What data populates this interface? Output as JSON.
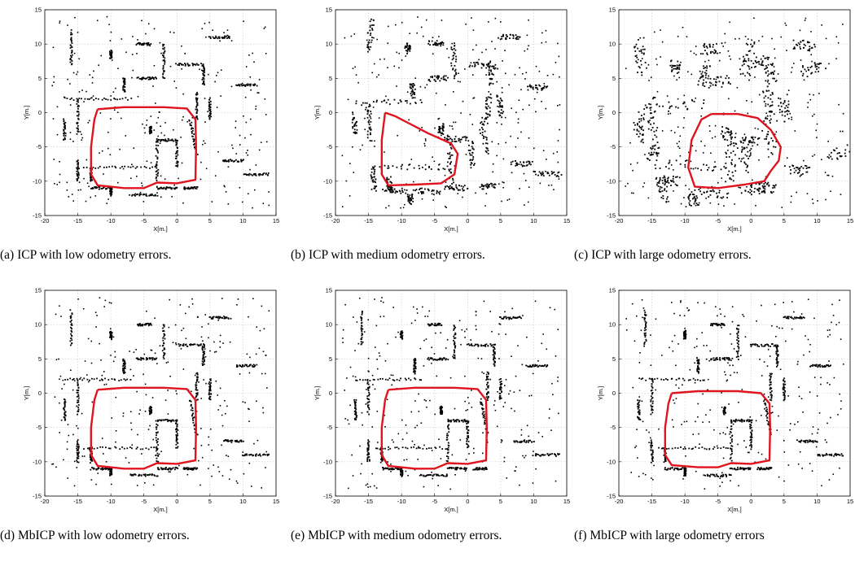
{
  "figure": {
    "panels": [
      {
        "caption": "(a) ICP with low odometry errors."
      },
      {
        "caption": "(b) ICP with medium odometry errors."
      },
      {
        "caption": "(c) ICP with large odometry errors."
      },
      {
        "caption": "(d) MbICP with low odometry errors."
      },
      {
        "caption": "(e) MbICP with medium odometry errors."
      },
      {
        "caption": "(f) MbICP with large odometry errors"
      }
    ]
  },
  "chart_data": [
    {
      "type": "scatter",
      "title": "",
      "xlabel": "X[m.]",
      "ylabel": "Y[m.]",
      "xlim": [
        -20,
        15
      ],
      "ylim": [
        -15,
        15
      ],
      "xticks": [
        "-20",
        "-15",
        "-10",
        "-5",
        "0",
        "5",
        "10",
        "15"
      ],
      "yticks": [
        "15",
        "10",
        "5",
        "0",
        "-5",
        "-10",
        "-15"
      ],
      "grid": true,
      "trajectory_color": "#e0141e",
      "points_color": "#000000",
      "trajectory": [
        [
          -12,
          0.5
        ],
        [
          -8,
          0.8
        ],
        [
          -2,
          0.8
        ],
        [
          1.5,
          0.6
        ],
        [
          2.8,
          -1
        ],
        [
          2.9,
          -5
        ],
        [
          2.8,
          -9.8
        ],
        [
          0,
          -10.3
        ],
        [
          -3,
          -10.2
        ],
        [
          -5,
          -11
        ],
        [
          -8,
          -11
        ],
        [
          -12,
          -10.6
        ],
        [
          -13,
          -9
        ],
        [
          -13,
          -5
        ],
        [
          -12.5,
          -1
        ],
        [
          -12,
          0.5
        ]
      ]
    },
    {
      "type": "scatter",
      "title": "",
      "xlabel": "X[m.]",
      "ylabel": "Y[m.]",
      "xlim": [
        -20,
        15
      ],
      "ylim": [
        -15,
        15
      ],
      "xticks": [
        "-20",
        "-15",
        "-10",
        "-5",
        "0",
        "5",
        "10",
        "15"
      ],
      "yticks": [
        "15",
        "10",
        "5",
        "0",
        "-5",
        "-10",
        "-15"
      ],
      "grid": true,
      "trajectory_color": "#e0141e",
      "points_color": "#000000",
      "trajectory": [
        [
          -12.5,
          0
        ],
        [
          -11,
          -0.5
        ],
        [
          -6,
          -3
        ],
        [
          -2.5,
          -4.5
        ],
        [
          -1.5,
          -6
        ],
        [
          -2,
          -9
        ],
        [
          -4,
          -10.3
        ],
        [
          -8,
          -10.5
        ],
        [
          -12,
          -10.6
        ],
        [
          -13,
          -9
        ],
        [
          -13,
          -4
        ],
        [
          -12.5,
          0
        ]
      ]
    },
    {
      "type": "scatter",
      "title": "",
      "xlabel": "X[m.]",
      "ylabel": "Y[m.]",
      "xlim": [
        -20,
        15
      ],
      "ylim": [
        -15,
        15
      ],
      "xticks": [
        "-20",
        "-15",
        "-10",
        "-5",
        "0",
        "5",
        "10",
        "15"
      ],
      "yticks": [
        "15",
        "10",
        "5",
        "0",
        "-5",
        "-10",
        "-15"
      ],
      "grid": true,
      "trajectory_color": "#e0141e",
      "points_color": "#000000",
      "trajectory": [
        [
          -6,
          -0.2
        ],
        [
          -2,
          -0.2
        ],
        [
          1,
          -0.8
        ],
        [
          3,
          -2.5
        ],
        [
          4.5,
          -5
        ],
        [
          4.2,
          -7
        ],
        [
          3,
          -8.5
        ],
        [
          2,
          -10
        ],
        [
          -1,
          -10.5
        ],
        [
          -5,
          -11
        ],
        [
          -8.5,
          -10.8
        ],
        [
          -9.5,
          -8
        ],
        [
          -9,
          -4
        ],
        [
          -7.5,
          -1
        ],
        [
          -6,
          -0.2
        ]
      ]
    },
    {
      "type": "scatter",
      "title": "",
      "xlabel": "X[m.]",
      "ylabel": "Y[m.]",
      "xlim": [
        -20,
        15
      ],
      "ylim": [
        -15,
        15
      ],
      "xticks": [
        "-20",
        "-15",
        "-10",
        "-5",
        "0",
        "5",
        "10",
        "15"
      ],
      "yticks": [
        "15",
        "10",
        "5",
        "0",
        "-5",
        "-10",
        "-15"
      ],
      "grid": true,
      "trajectory_color": "#e0141e",
      "points_color": "#000000",
      "trajectory": [
        [
          -12,
          0.5
        ],
        [
          -8,
          0.8
        ],
        [
          -2,
          0.8
        ],
        [
          1.5,
          0.6
        ],
        [
          2.8,
          -1
        ],
        [
          2.9,
          -5
        ],
        [
          2.8,
          -9.8
        ],
        [
          0,
          -10.3
        ],
        [
          -3,
          -10.2
        ],
        [
          -5,
          -11
        ],
        [
          -8,
          -11
        ],
        [
          -12,
          -10.6
        ],
        [
          -13,
          -9
        ],
        [
          -13,
          -5
        ],
        [
          -12.5,
          -1
        ],
        [
          -12,
          0.5
        ]
      ]
    },
    {
      "type": "scatter",
      "title": "",
      "xlabel": "X[m.]",
      "ylabel": "Y[m.]",
      "xlim": [
        -20,
        15
      ],
      "ylim": [
        -15,
        15
      ],
      "xticks": [
        "-20",
        "-15",
        "-10",
        "-5",
        "0",
        "5",
        "10",
        "15"
      ],
      "yticks": [
        "15",
        "10",
        "5",
        "0",
        "-5",
        "-10",
        "-15"
      ],
      "grid": true,
      "trajectory_color": "#e0141e",
      "points_color": "#000000",
      "trajectory": [
        [
          -12,
          0.5
        ],
        [
          -8,
          0.8
        ],
        [
          -2,
          0.8
        ],
        [
          1.5,
          0.6
        ],
        [
          2.8,
          -1
        ],
        [
          2.9,
          -5
        ],
        [
          2.8,
          -9.8
        ],
        [
          0,
          -10.3
        ],
        [
          -3,
          -10.2
        ],
        [
          -5,
          -11
        ],
        [
          -8,
          -11
        ],
        [
          -12,
          -10.6
        ],
        [
          -13,
          -9
        ],
        [
          -13,
          -5
        ],
        [
          -12.5,
          -1
        ],
        [
          -12,
          0.5
        ]
      ]
    },
    {
      "type": "scatter",
      "title": "",
      "xlabel": "X[m.]",
      "ylabel": "Y[m.]",
      "xlim": [
        -20,
        15
      ],
      "ylim": [
        -15,
        15
      ],
      "xticks": [
        "-20",
        "-15",
        "-10",
        "-5",
        "0",
        "5",
        "10",
        "15"
      ],
      "yticks": [
        "15",
        "10",
        "5",
        "0",
        "-5",
        "-10",
        "-15"
      ],
      "grid": true,
      "trajectory_color": "#e0141e",
      "points_color": "#000000",
      "trajectory": [
        [
          -12,
          0
        ],
        [
          -8,
          0.3
        ],
        [
          -2,
          0.3
        ],
        [
          1.5,
          0
        ],
        [
          2.8,
          -1.5
        ],
        [
          2.9,
          -5
        ],
        [
          2.8,
          -9.8
        ],
        [
          0,
          -10.3
        ],
        [
          -3,
          -10.2
        ],
        [
          -5,
          -10.8
        ],
        [
          -8,
          -10.8
        ],
        [
          -12,
          -10.5
        ],
        [
          -13,
          -9
        ],
        [
          -13,
          -5
        ],
        [
          -12.5,
          -1.5
        ],
        [
          -12,
          0
        ]
      ]
    }
  ]
}
